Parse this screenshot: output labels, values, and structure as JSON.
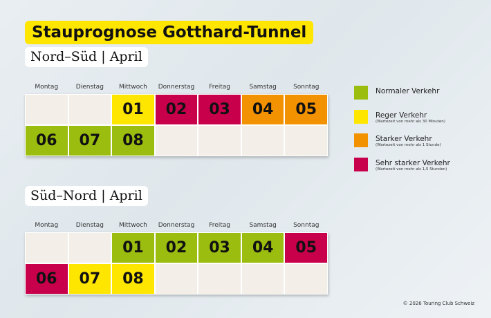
{
  "title": "Stauprognose Gotthard-Tunnel",
  "weekdays": [
    "Montag",
    "Dienstag",
    "Mittwoch",
    "Donnerstag",
    "Freitag",
    "Samstag",
    "Sonntag"
  ],
  "colors": {
    "normal": "#9bbd0f",
    "reger": "#ffe600",
    "starker": "#f39200",
    "sehr_starker": "#c8004b",
    "empty": "#f3efe8"
  },
  "calendars": [
    {
      "subtitle": "Nord–Süd | April",
      "days": [
        {
          "day": "01",
          "level": "reger"
        },
        {
          "day": "02",
          "level": "sehr_starker"
        },
        {
          "day": "03",
          "level": "sehr_starker"
        },
        {
          "day": "04",
          "level": "starker"
        },
        {
          "day": "05",
          "level": "starker"
        },
        {
          "day": "06",
          "level": "normal"
        },
        {
          "day": "07",
          "level": "normal"
        },
        {
          "day": "08",
          "level": "normal"
        }
      ]
    },
    {
      "subtitle": "Süd–Nord | April",
      "days": [
        {
          "day": "01",
          "level": "normal"
        },
        {
          "day": "02",
          "level": "normal"
        },
        {
          "day": "03",
          "level": "normal"
        },
        {
          "day": "04",
          "level": "normal"
        },
        {
          "day": "05",
          "level": "sehr_starker"
        },
        {
          "day": "06",
          "level": "sehr_starker"
        },
        {
          "day": "07",
          "level": "reger"
        },
        {
          "day": "08",
          "level": "reger"
        }
      ]
    }
  ],
  "legend": [
    {
      "level": "normal",
      "label": "Normaler Verkehr",
      "note": ""
    },
    {
      "level": "reger",
      "label": "Reger Verkehr",
      "note": "(Wartezeit von mehr als 30 Minuten)"
    },
    {
      "level": "starker",
      "label": "Starker Verkehr",
      "note": "(Wartezeit von mehr als 1 Stunde)"
    },
    {
      "level": "sehr_starker",
      "label": "Sehr starker Verkehr",
      "note": "(Wartezeit von mehr als 1,5 Stunden)"
    }
  ],
  "copyright": "© 2026 Touring Club Schweiz"
}
